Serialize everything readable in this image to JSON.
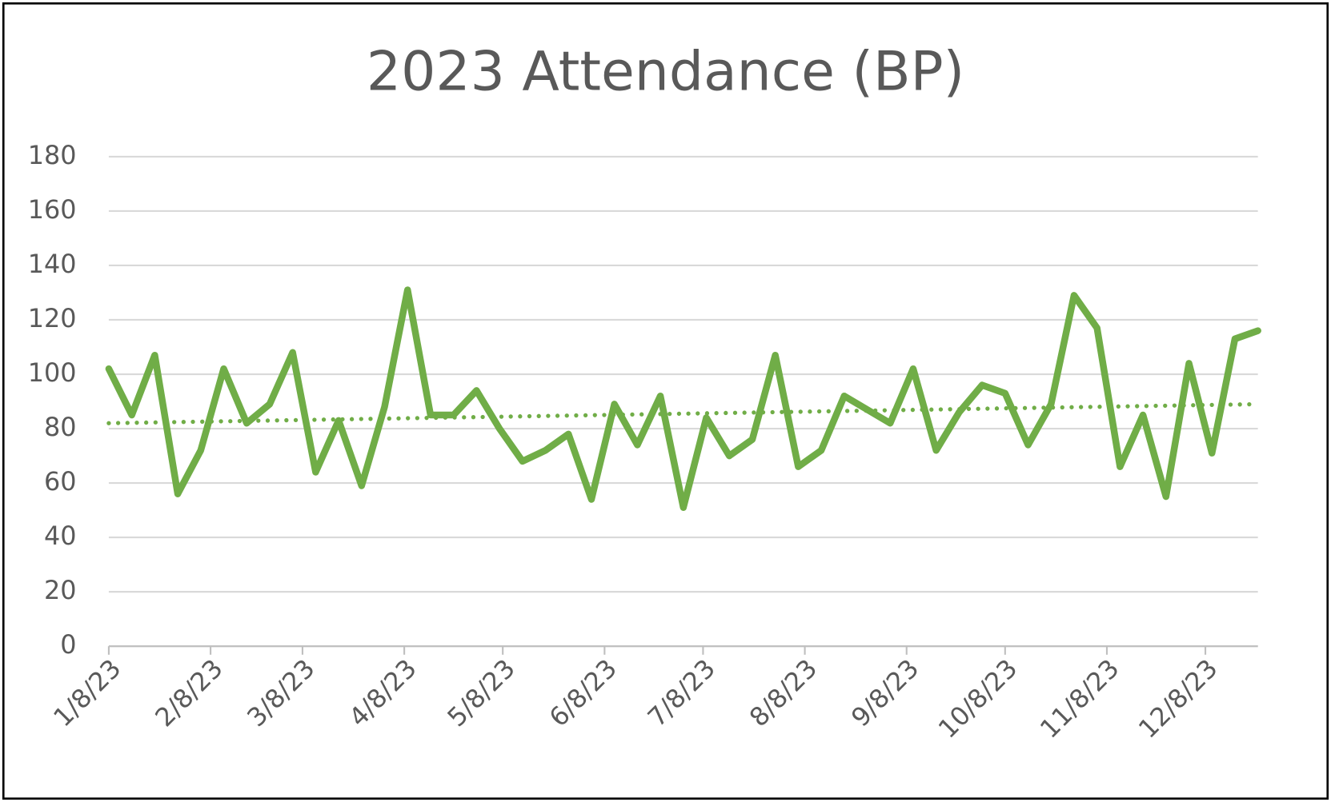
{
  "chart_data": {
    "type": "line",
    "title": "2023 Attendance (BP)",
    "x": [
      "2023-01-08",
      "2023-01-15",
      "2023-01-22",
      "2023-01-29",
      "2023-02-05",
      "2023-02-12",
      "2023-02-19",
      "2023-02-26",
      "2023-03-05",
      "2023-03-12",
      "2023-03-19",
      "2023-03-26",
      "2023-04-02",
      "2023-04-09",
      "2023-04-16",
      "2023-04-23",
      "2023-04-30",
      "2023-05-07",
      "2023-05-14",
      "2023-05-21",
      "2023-05-28",
      "2023-06-04",
      "2023-06-11",
      "2023-06-18",
      "2023-06-25",
      "2023-07-02",
      "2023-07-09",
      "2023-07-16",
      "2023-07-23",
      "2023-07-30",
      "2023-08-06",
      "2023-08-13",
      "2023-08-20",
      "2023-08-27",
      "2023-09-03",
      "2023-09-10",
      "2023-09-17",
      "2023-09-24",
      "2023-10-01",
      "2023-10-08",
      "2023-10-15",
      "2023-10-22",
      "2023-10-29",
      "2023-11-05",
      "2023-11-12",
      "2023-11-19",
      "2023-11-26",
      "2023-12-03",
      "2023-12-10",
      "2023-12-17",
      "2023-12-24"
    ],
    "series": [
      {
        "color": "#70ad47",
        "values": [
          102,
          85,
          107,
          56,
          72,
          102,
          82,
          89,
          108,
          64,
          83,
          59,
          88,
          131,
          85,
          85,
          94,
          80,
          68,
          72,
          78,
          54,
          89,
          74,
          92,
          51,
          84,
          70,
          76,
          107,
          66,
          72,
          92,
          87,
          82,
          102,
          72,
          86,
          96,
          93,
          74,
          89,
          129,
          117,
          66,
          85,
          55,
          104,
          71,
          113,
          116
        ]
      }
    ],
    "trendline": [
      82,
      89
    ],
    "xlim": [
      "2023-01-08",
      "2023-12-24"
    ],
    "xticks": [
      {
        "value": "2023-01-08",
        "label": "1/8/23"
      },
      {
        "value": "2023-02-08",
        "label": "2/8/23"
      },
      {
        "value": "2023-03-08",
        "label": "3/8/23"
      },
      {
        "value": "2023-04-08",
        "label": "4/8/23"
      },
      {
        "value": "2023-05-08",
        "label": "5/8/23"
      },
      {
        "value": "2023-06-08",
        "label": "6/8/23"
      },
      {
        "value": "2023-07-08",
        "label": "7/8/23"
      },
      {
        "value": "2023-08-08",
        "label": "8/8/23"
      },
      {
        "value": "2023-09-08",
        "label": "9/8/23"
      },
      {
        "value": "2023-10-08",
        "label": "10/8/23"
      },
      {
        "value": "2023-11-08",
        "label": "11/8/23"
      },
      {
        "value": "2023-12-08",
        "label": "12/8/23"
      }
    ],
    "ylim": [
      0,
      180
    ],
    "yticks": [
      0,
      20,
      40,
      60,
      80,
      100,
      120,
      140,
      160,
      180
    ],
    "grid": true
  }
}
